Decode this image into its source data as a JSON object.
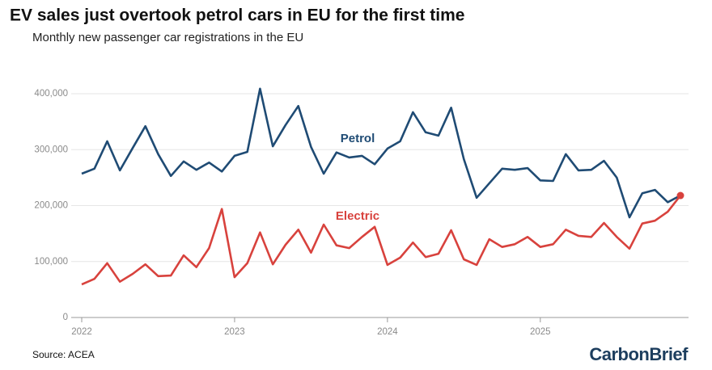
{
  "chart_data": {
    "type": "line",
    "title": "EV sales just overtook petrol cars in EU for the first time",
    "subtitle": "Monthly new passenger car registrations in the EU",
    "source": "Source: ACEA",
    "logo": "CarbonBrief",
    "categories": [
      "2022",
      null,
      null,
      null,
      null,
      null,
      null,
      null,
      null,
      null,
      null,
      null,
      "2023",
      null,
      null,
      null,
      null,
      null,
      null,
      null,
      null,
      null,
      null,
      null,
      "2024",
      null,
      null,
      null,
      null,
      null,
      null,
      null,
      null,
      null,
      null,
      null,
      "2025",
      null,
      null,
      null,
      null,
      null,
      null,
      null,
      null,
      null,
      null,
      null
    ],
    "series": [
      {
        "name": "Petrol",
        "color": "#1f4b74",
        "values": [
          257000,
          266000,
          315000,
          263000,
          303000,
          342000,
          292000,
          253000,
          279000,
          264000,
          277000,
          261000,
          289000,
          296000,
          409000,
          306000,
          344000,
          378000,
          305000,
          257000,
          295000,
          286000,
          289000,
          274000,
          302000,
          315000,
          367000,
          331000,
          325000,
          375000,
          283000,
          214000,
          240000,
          266000,
          264000,
          267000,
          245000,
          244000,
          292000,
          263000,
          264000,
          280000,
          250000,
          179000,
          222000,
          228000,
          206000,
          218000
        ]
      },
      {
        "name": "Electric",
        "color": "#d8423d",
        "values": [
          59000,
          69000,
          97000,
          64000,
          78000,
          95000,
          74000,
          75000,
          111000,
          90000,
          124000,
          194000,
          72000,
          97000,
          152000,
          95000,
          130000,
          157000,
          116000,
          166000,
          129000,
          124000,
          144000,
          162000,
          94000,
          107000,
          134000,
          108000,
          114000,
          156000,
          104000,
          94000,
          140000,
          126000,
          131000,
          144000,
          126000,
          131000,
          157000,
          146000,
          144000,
          169000,
          144000,
          123000,
          168000,
          173000,
          189000,
          218000
        ]
      }
    ],
    "ylim": [
      0,
      420000
    ],
    "yticks": [
      0,
      {
        "value": 100000,
        "label": "100,000"
      },
      {
        "value": 200000,
        "label": "200,000"
      },
      {
        "value": 300000,
        "label": "300,000"
      },
      {
        "value": 400000,
        "label": "400,000"
      }
    ],
    "grid": true
  }
}
